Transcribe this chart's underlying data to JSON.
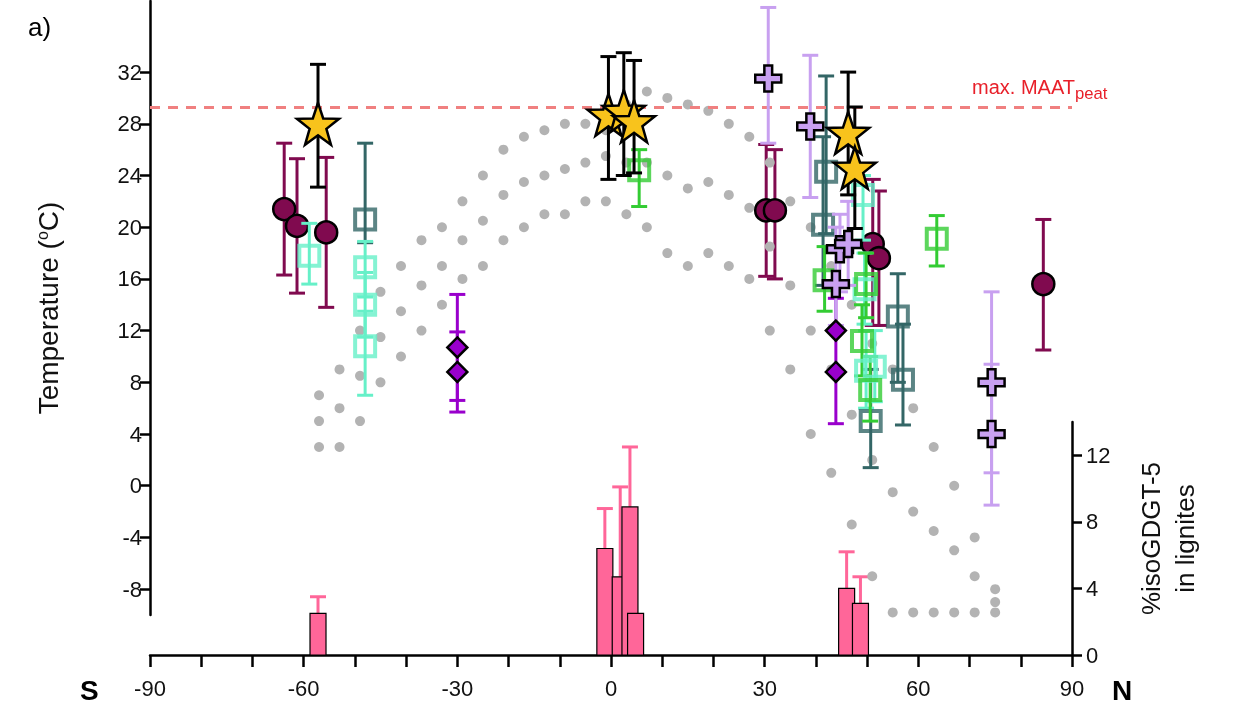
{
  "chart_data": {
    "type": "scatter",
    "ylabel": "Temperature ($^{o}$C)",
    "y2label": "%isoGDGT-5\nin lignites",
    "annotations": [
      "a)",
      "S",
      "N"
    ],
    "xlim": [
      -90,
      90
    ],
    "xticks": [
      -90,
      {
        "value": -80,
        "label": null
      },
      {
        "value": -70,
        "label": null
      },
      -60,
      {
        "value": -50,
        "label": null
      },
      {
        "value": -40,
        "label": null
      },
      -30,
      {
        "value": -20,
        "label": null
      },
      {
        "value": -10,
        "label": null
      },
      0,
      {
        "value": 10,
        "label": null
      },
      {
        "value": 20,
        "label": null
      },
      30,
      {
        "value": 40,
        "label": null
      },
      {
        "value": 50,
        "label": null
      },
      60,
      {
        "value": 70,
        "label": null
      },
      {
        "value": 80,
        "label": null
      },
      90
    ],
    "ylim": [
      -10,
      37.5
    ],
    "yticks": [
      -8,
      -4,
      0,
      4,
      8,
      12,
      16,
      20,
      24,
      28,
      32
    ],
    "y2lim": [
      0,
      14
    ],
    "y2ticks": [
      0,
      4,
      8,
      12
    ],
    "ref_lines": [
      {
        "axis": "y",
        "value": 29.3,
        "label": "max. MAAT$_{peat}$",
        "color": "#f08080",
        "line_style": "dashed"
      }
    ],
    "series": [
      {
        "marker": "circle",
        "color": "#b3b3b3",
        "x": [
          -57,
          -57,
          -57,
          -53,
          -53,
          -53,
          -49,
          -49,
          -49,
          -45,
          -45,
          -45,
          -41,
          -41,
          -41,
          -37,
          -37,
          -37,
          -33,
          -33,
          -33,
          -29,
          -29,
          -29,
          -25,
          -25,
          -25,
          -21,
          -21,
          -21,
          -17,
          -17,
          -17,
          -13,
          -13,
          -13,
          -9,
          -9,
          -9,
          -5,
          -5,
          -5,
          -1,
          -1,
          -1,
          3,
          3,
          3,
          7,
          7,
          7,
          11,
          11,
          11,
          15,
          15,
          15,
          19,
          19,
          19,
          23,
          23,
          23,
          27,
          27,
          27,
          31,
          31,
          31,
          35,
          35,
          35,
          39,
          39,
          39,
          43,
          43,
          43,
          47,
          47,
          47,
          51,
          51,
          51,
          55,
          55,
          55,
          59,
          59,
          59,
          63,
          63,
          63,
          67,
          67,
          67,
          71,
          71,
          71,
          75,
          75,
          75
        ],
        "values": [
          3,
          5,
          7,
          3,
          6,
          9,
          5,
          8.5,
          12,
          8,
          11.5,
          15,
          10,
          13.5,
          17,
          12,
          15.5,
          19,
          14,
          17,
          20,
          16,
          19,
          22,
          17,
          20.5,
          24,
          19,
          22.5,
          26,
          20,
          23.5,
          27,
          21,
          24,
          27.5,
          21,
          24.5,
          28,
          22,
          25,
          28,
          22,
          25.5,
          27.5,
          21,
          25,
          29.5,
          20,
          25,
          30.5,
          18,
          24,
          30,
          17,
          23,
          29.5,
          18,
          23.5,
          29,
          17,
          22.5,
          28,
          16,
          21.5,
          27,
          12,
          18.5,
          25,
          9,
          15.5,
          22,
          4,
          12,
          20,
          1,
          9,
          17,
          -3,
          5.5,
          14,
          -7,
          2,
          11,
          -9.8,
          -0.5,
          9,
          -9.8,
          -2,
          6,
          -9.8,
          -3.5,
          3,
          -9.8,
          -5,
          0,
          -9.8,
          -7,
          -4,
          -9.8,
          -9,
          -8
        ]
      },
      {
        "marker": "circle",
        "color": "#800a4f",
        "x": [
          -63.8,
          -61.3,
          -55.6,
          30.3,
          32.0,
          51.1,
          52.3,
          84.4
        ],
        "values": [
          21.4,
          20.1,
          19.6,
          21.3,
          21.3,
          18.7,
          17.6,
          15.6
        ],
        "errors": [
          [
            16.3,
            26.5
          ],
          [
            14.9,
            25.3
          ],
          [
            13.8,
            25.4
          ],
          [
            16.2,
            26.4
          ],
          [
            16.0,
            26.0
          ],
          [
            12.4,
            23.7
          ],
          [
            12.4,
            22.8
          ],
          [
            10.5,
            20.6
          ]
        ]
      },
      {
        "marker": "square",
        "color": "#336666",
        "x": [
          -48.0,
          42.0,
          41.4,
          56.0,
          57.0,
          50.7
        ],
        "values": [
          20.6,
          24.3,
          20.2,
          13.1,
          8.2,
          5.0
        ],
        "errors": [
          [
            18.8,
            26.5
          ],
          [
            19.5,
            31.7
          ],
          [
            15.5,
            27.0
          ],
          [
            8.0,
            16.4
          ],
          [
            4.7,
            12.5
          ],
          [
            1.4,
            9.0
          ]
        ]
      },
      {
        "marker": "square",
        "color": "#66f0c8",
        "x": [
          -58.9,
          -48.0,
          -48.0,
          -48.0,
          49.2,
          49.5,
          49.8,
          51.5
        ],
        "values": [
          17.8,
          16.9,
          14.0,
          10.8,
          22.5,
          15.2,
          8.9,
          9.2
        ],
        "errors": [
          [
            15.6,
            20.3
          ],
          [
            14.6,
            18.9
          ],
          [
            11.5,
            16.5
          ],
          [
            7.0,
            13.5
          ],
          [
            19,
            24
          ],
          [
            12.5,
            18
          ],
          [
            6,
            12
          ],
          [
            6.5,
            12
          ]
        ]
      },
      {
        "marker": "square",
        "color": "#33cc33",
        "x": [
          5.5,
          63.6,
          41.7,
          49.8,
          49.0,
          50.6
        ],
        "values": [
          24.4,
          19.1,
          15.9,
          15.6,
          11.2,
          7.4
        ],
        "errors": [
          [
            21.6,
            26.0
          ],
          [
            17.0,
            20.9
          ],
          [
            13.5,
            18.5
          ],
          [
            13,
            18
          ],
          [
            8.5,
            14
          ],
          [
            5,
            10
          ]
        ]
      },
      {
        "marker": "diamond",
        "color": "#9900cc",
        "x": [
          -30,
          -30,
          43.9,
          43.9
        ],
        "values": [
          10.7,
          8.8,
          12.0,
          8.8
        ],
        "errors": [
          [
            6.6,
            14.8
          ],
          [
            5.7,
            11.9
          ],
          [
            9,
            14.5
          ],
          [
            4.8,
            8.8
          ]
        ]
      },
      {
        "marker": "cross",
        "color": "#c8a0f0",
        "x": [
          30.7,
          38.9,
          44.7,
          46.3,
          43.9,
          74.3,
          74.3
        ],
        "values": [
          31.5,
          27.8,
          18.3,
          18.7,
          15.6,
          8.0,
          4.0
        ],
        "errors": [
          [
            26.5,
            37.0
          ],
          [
            22.3,
            33.3
          ],
          [
            15,
            21
          ],
          [
            15.5,
            22
          ],
          [
            12.4,
            20
          ],
          [
            1.0,
            15.0
          ],
          [
            -1.5,
            9.4
          ]
        ]
      },
      {
        "marker": "star",
        "color": "#f8c31c",
        "x": [
          -57.2,
          -0.5,
          2.5,
          4.5,
          46.3,
          47.6
        ],
        "values": [
          28.0,
          28.7,
          29.0,
          28.2,
          27.3,
          24.6
        ],
        "errors": [
          [
            23.1,
            32.6
          ],
          [
            23.7,
            33.2
          ],
          [
            24.0,
            33.5
          ],
          [
            24.2,
            32.9
          ],
          [
            22.5,
            32.0
          ],
          [
            19.9,
            29.3
          ]
        ]
      },
      {
        "type": "bar",
        "axis": "y2",
        "color": "#ff6699",
        "x": [
          -57.2,
          -1.2,
          1.8,
          3.7,
          4.8,
          46.0,
          48.7
        ],
        "values": [
          2.5,
          6.4,
          4.7,
          8.9,
          2.5,
          4.0,
          3.1
        ],
        "errors": [
          [
            2.5,
            3.5
          ],
          [
            6.4,
            8.8
          ],
          [
            4.7,
            10.1
          ],
          [
            8.9,
            12.5
          ],
          null,
          [
            4.0,
            6.2
          ],
          [
            3.1,
            4.7
          ]
        ]
      }
    ]
  }
}
